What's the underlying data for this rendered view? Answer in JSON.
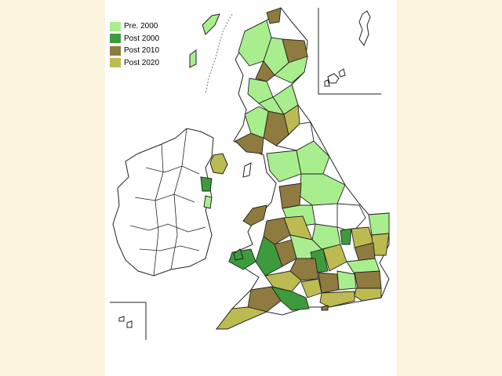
{
  "legend": {
    "items": [
      {
        "label": "Pre.  2000",
        "color": "#a9ee8e"
      },
      {
        "label": "Post 2000",
        "color": "#3d9b3d"
      },
      {
        "label": "Post 2010",
        "color": "#8f7a3f"
      },
      {
        "label": "Post 2020",
        "color": "#bcbb52"
      }
    ]
  },
  "colors": {
    "outside": "#fbf5df",
    "panel": "#ffffff",
    "unshaded": "#ffffff",
    "border": "#222222"
  }
}
